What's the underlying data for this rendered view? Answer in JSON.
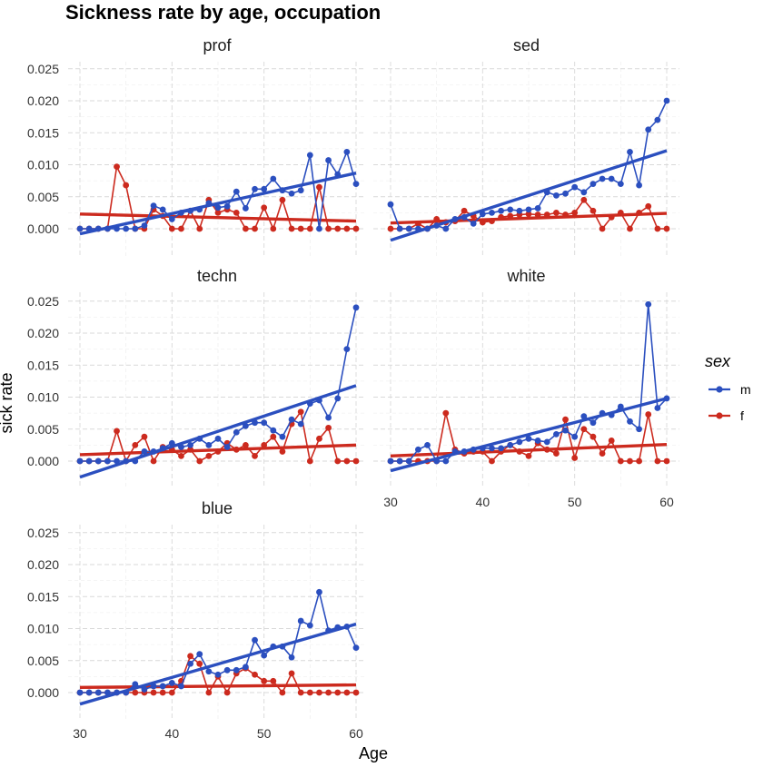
{
  "chart_data": {
    "type": "line",
    "title": "Sickness rate by age, occupation",
    "xlabel": "Age",
    "ylabel": "sick rate",
    "xlim": [
      30,
      60
    ],
    "ylim": [
      -0.004,
      0.026
    ],
    "x_ticks": [
      "30",
      "40",
      "50",
      "60"
    ],
    "y_ticks": [
      "0.000",
      "0.005",
      "0.010",
      "0.015",
      "0.020",
      "0.025"
    ],
    "grid": true,
    "legend": {
      "title": "sex",
      "position": "right",
      "entries": [
        {
          "label": "m",
          "color": "#2b4fbf"
        },
        {
          "label": "f",
          "color": "#cc2a1e"
        }
      ]
    },
    "x": [
      30,
      31,
      32,
      33,
      34,
      35,
      36,
      37,
      38,
      39,
      40,
      41,
      42,
      43,
      44,
      45,
      46,
      47,
      48,
      49,
      50,
      51,
      52,
      53,
      54,
      55,
      56,
      57,
      58,
      59,
      60
    ],
    "panels": [
      {
        "name": "prof",
        "series": [
          {
            "name": "m",
            "values": [
              0,
              0,
              0,
              0,
              0,
              0,
              0,
              0.0005,
              0.0036,
              0.003,
              0.0015,
              0.0025,
              0.0028,
              0.003,
              0.004,
              0.0033,
              0.0035,
              0.0058,
              0.0032,
              0.0062,
              0.0062,
              0.0078,
              0.006,
              0.0055,
              0.006,
              0.0115,
              0,
              0.0107,
              0.0085,
              0.012,
              0.007
            ],
            "trend": [
              -0.0008,
              0.0087
            ]
          },
          {
            "name": "f",
            "values": [
              0,
              0,
              0,
              0,
              0.0097,
              0.0068,
              0,
              0,
              0.003,
              0.002,
              0,
              0,
              0.0028,
              0,
              0.0045,
              0.0025,
              0.003,
              0.0025,
              0,
              0,
              0.0033,
              0,
              0.0045,
              0,
              0,
              0,
              0.0065,
              0,
              0,
              0,
              0
            ],
            "trend": [
              0.0023,
              0.0012
            ]
          }
        ]
      },
      {
        "name": "sed",
        "series": [
          {
            "name": "m",
            "values": [
              0.0038,
              0,
              0,
              0,
              0,
              0.0005,
              0,
              0.0015,
              0.0018,
              0.0008,
              0.0023,
              0.0025,
              0.0028,
              0.003,
              0.0028,
              0.003,
              0.0032,
              0.0057,
              0.0052,
              0.0055,
              0.0065,
              0.0057,
              0.007,
              0.0078,
              0.0078,
              0.007,
              0.012,
              0.0068,
              0.0155,
              0.017,
              0.02
            ],
            "trend": [
              -0.0018,
              0.0122
            ]
          },
          {
            "name": "f",
            "values": [
              0,
              0,
              0,
              0.0008,
              0,
              0.0015,
              0.001,
              0.0012,
              0.0028,
              0.002,
              0.001,
              0.0012,
              0.0018,
              0.002,
              0.0022,
              0.0023,
              0.0022,
              0.0022,
              0.0025,
              0.0022,
              0.0025,
              0.0045,
              0.0028,
              0,
              0.0018,
              0.0025,
              0,
              0.0025,
              0.0035,
              0,
              0
            ],
            "trend": [
              0.0009,
              0.0024
            ]
          }
        ]
      },
      {
        "name": "techn",
        "series": [
          {
            "name": "m",
            "values": [
              0,
              0,
              0,
              0,
              0,
              0,
              0,
              0.0015,
              0.0015,
              0.002,
              0.0028,
              0.0022,
              0.0025,
              0.0035,
              0.0025,
              0.0035,
              0.0022,
              0.0045,
              0.0055,
              0.006,
              0.006,
              0.0048,
              0.0038,
              0.0065,
              0.0058,
              0.009,
              0.0095,
              0.0068,
              0.0098,
              0.0175,
              0.024
            ],
            "trend": [
              -0.0025,
              0.0118
            ]
          },
          {
            "name": "f",
            "values": [
              0,
              0,
              0,
              0,
              0.0047,
              0,
              0.0025,
              0.0038,
              0,
              0.0022,
              0.0018,
              0.0008,
              0.0018,
              0,
              0.0008,
              0.0015,
              0.0028,
              0.0018,
              0.0025,
              0.0008,
              0.0025,
              0.0038,
              0.0015,
              0.0058,
              0.0077,
              0,
              0.0035,
              0.0052,
              0,
              0,
              0
            ],
            "trend": [
              0.001,
              0.0025
            ]
          }
        ]
      },
      {
        "name": "white",
        "series": [
          {
            "name": "m",
            "values": [
              0,
              0,
              0,
              0.0018,
              0.0025,
              0,
              0,
              0.0015,
              0.0015,
              0.0018,
              0.002,
              0.002,
              0.002,
              0.0025,
              0.003,
              0.0035,
              0.0032,
              0.003,
              0.0042,
              0.0048,
              0.0038,
              0.007,
              0.006,
              0.0075,
              0.0072,
              0.0085,
              0.0062,
              0.005,
              0.0245,
              0.0083,
              0.0098
            ],
            "trend": [
              -0.0015,
              0.0098
            ]
          },
          {
            "name": "f",
            "values": [
              0,
              0,
              0,
              0,
              0,
              0,
              0.0075,
              0.0018,
              0.0012,
              0.0015,
              0.0015,
              0,
              0.0015,
              0.0025,
              0.0015,
              0.0008,
              0.0028,
              0.0018,
              0.0012,
              0.0065,
              0.0005,
              0.005,
              0.0038,
              0.0012,
              0.0032,
              0,
              0,
              0,
              0.0073,
              0,
              0
            ],
            "trend": [
              0.0008,
              0.0026
            ]
          }
        ]
      },
      {
        "name": "blue",
        "series": [
          {
            "name": "m",
            "values": [
              0,
              0,
              0,
              0,
              0,
              0,
              0.0013,
              0.0005,
              0.001,
              0.001,
              0.0015,
              0.001,
              0.0045,
              0.006,
              0.0033,
              0.0028,
              0.0035,
              0.0035,
              0.004,
              0.0082,
              0.0058,
              0.0072,
              0.0072,
              0.0055,
              0.0112,
              0.0105,
              0.0157,
              0.0097,
              0.0102,
              0.0103,
              0.007
            ],
            "trend": [
              -0.0018,
              0.0107
            ]
          },
          {
            "name": "f",
            "values": [
              0,
              0,
              0,
              0,
              0,
              0,
              0,
              0,
              0,
              0,
              0,
              0.0018,
              0.0057,
              0.0045,
              0,
              0.0025,
              0,
              0.003,
              0.0038,
              0.0028,
              0.0018,
              0.0018,
              0,
              0.003,
              0,
              0,
              0,
              0,
              0,
              0,
              0
            ],
            "trend": [
              0.0008,
              0.0012
            ]
          }
        ]
      }
    ]
  }
}
